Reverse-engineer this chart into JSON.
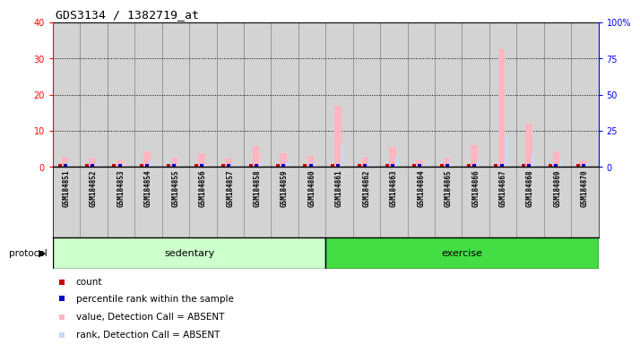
{
  "title": "GDS3134 / 1382719_at",
  "samples": [
    "GSM184851",
    "GSM184852",
    "GSM184853",
    "GSM184854",
    "GSM184855",
    "GSM184856",
    "GSM184857",
    "GSM184858",
    "GSM184859",
    "GSM184860",
    "GSM184861",
    "GSM184862",
    "GSM184863",
    "GSM184864",
    "GSM184865",
    "GSM184866",
    "GSM184867",
    "GSM184868",
    "GSM184869",
    "GSM184870"
  ],
  "value_absent": [
    2.7,
    2.5,
    1.8,
    4.2,
    2.5,
    3.8,
    2.5,
    5.8,
    3.8,
    3.0,
    17.0,
    2.8,
    5.5,
    1.8,
    2.5,
    6.0,
    32.5,
    12.0,
    4.2,
    1.8
  ],
  "rank_absent": [
    1.0,
    0.8,
    0.9,
    1.8,
    1.0,
    0.9,
    1.0,
    1.5,
    1.0,
    1.0,
    6.2,
    1.0,
    2.5,
    0.9,
    1.0,
    2.0,
    8.5,
    3.5,
    1.8,
    1.0
  ],
  "count_vals": [
    1,
    1,
    1,
    1,
    1,
    1,
    1,
    1,
    1,
    1,
    1,
    1,
    1,
    1,
    1,
    1,
    1,
    1,
    1,
    1
  ],
  "percentile_vals": [
    1,
    1,
    1,
    1,
    1,
    1,
    1,
    1,
    1,
    1,
    2,
    1,
    1,
    1,
    1,
    1,
    3,
    1,
    1,
    1
  ],
  "sedentary_count": 10,
  "exercise_count": 10,
  "ylim_left": [
    0,
    40
  ],
  "ylim_right": [
    0,
    100
  ],
  "yticks_left": [
    0,
    10,
    20,
    30,
    40
  ],
  "ytick_labels_left": [
    "0",
    "10",
    "20",
    "30",
    "40"
  ],
  "yticks_right": [
    0,
    25,
    50,
    75,
    100
  ],
  "ytick_labels_right": [
    "0",
    "25",
    "50",
    "75",
    "100%"
  ],
  "value_color": "#FFB6C1",
  "rank_color": "#C8D8F0",
  "count_color": "#CC0000",
  "percentile_color": "#0000CC",
  "col_bg_color": "#D3D3D3",
  "col_border_color": "#888888",
  "sedentary_color": "#CCFFCC",
  "exercise_color": "#44DD44",
  "protocol_label": "protocol",
  "sedentary_label": "sedentary",
  "exercise_label": "exercise",
  "legend_items": [
    {
      "color": "#CC0000",
      "label": "count"
    },
    {
      "color": "#0000CC",
      "label": "percentile rank within the sample"
    },
    {
      "color": "#FFB6C1",
      "label": "value, Detection Call = ABSENT"
    },
    {
      "color": "#C8D8F0",
      "label": "rank, Detection Call = ABSENT"
    }
  ]
}
